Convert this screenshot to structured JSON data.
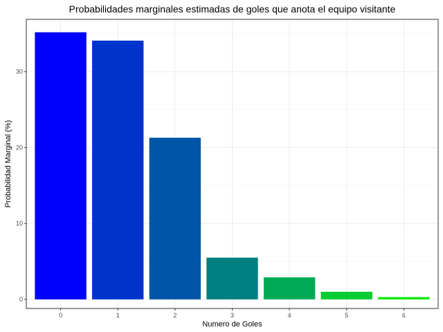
{
  "chart_data": {
    "type": "bar",
    "title": "Probabilidades marginales estimadas de goles que anota el equipo visitante",
    "xlabel": "Numero de Goles",
    "ylabel": "Probabilidad Marginal (%)",
    "categories": [
      "0",
      "1",
      "2",
      "3",
      "4",
      "5",
      "6"
    ],
    "values": [
      35.2,
      34.1,
      21.3,
      5.5,
      2.9,
      1.0,
      0.3
    ],
    "colors": [
      "#0000FF",
      "#0033CC",
      "#0055A8",
      "#008080",
      "#00AA55",
      "#00CC33",
      "#00EE00"
    ],
    "ylim": [
      -1.2,
      36.9
    ],
    "yticks": [
      0,
      10,
      20,
      30
    ],
    "grid": true,
    "legend": "none"
  }
}
